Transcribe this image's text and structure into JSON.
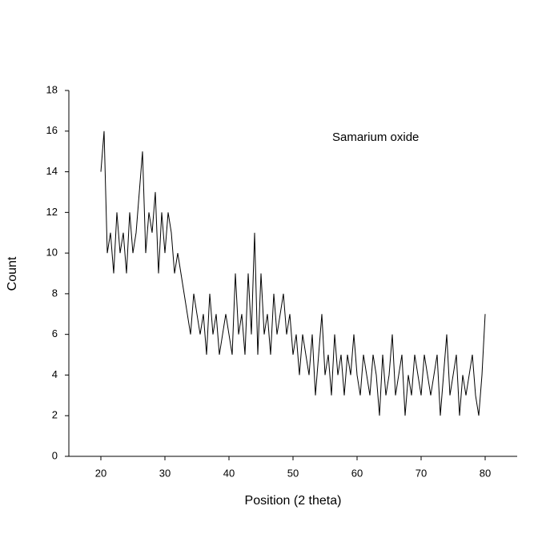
{
  "chart_data": {
    "type": "line",
    "annotation": "Samarium oxide",
    "xlabel": "Position (2 theta)",
    "ylabel": "Count",
    "x": [
      20,
      20.5,
      21,
      21.5,
      22,
      22.5,
      23,
      23.5,
      24,
      24.5,
      25,
      25.5,
      26,
      26.5,
      27,
      27.5,
      28,
      28.5,
      29,
      29.5,
      30,
      30.5,
      31,
      31.5,
      32,
      32.5,
      33,
      33.5,
      34,
      34.5,
      35,
      35.5,
      36,
      36.5,
      37,
      37.5,
      38,
      38.5,
      39,
      39.5,
      40,
      40.5,
      41,
      41.5,
      42,
      42.5,
      43,
      43.5,
      44,
      44.5,
      45,
      45.5,
      46,
      46.5,
      47,
      47.5,
      48,
      48.5,
      49,
      49.5,
      50,
      50.5,
      51,
      51.5,
      52,
      52.5,
      53,
      53.5,
      54,
      54.5,
      55,
      55.5,
      56,
      56.5,
      57,
      57.5,
      58,
      58.5,
      59,
      59.5,
      60,
      60.5,
      61,
      61.5,
      62,
      62.5,
      63,
      63.5,
      64,
      64.5,
      65,
      65.5,
      66,
      66.5,
      67,
      67.5,
      68,
      68.5,
      69,
      69.5,
      70,
      70.5,
      71,
      71.5,
      72,
      72.5,
      73,
      73.5,
      74,
      74.5,
      75,
      75.5,
      76,
      76.5,
      77,
      77.5,
      78,
      78.5,
      79,
      79.5,
      80
    ],
    "series": [
      {
        "color": "#000000",
        "values": [
          14,
          16,
          10,
          11,
          9,
          12,
          10,
          11,
          9,
          12,
          10,
          11,
          13,
          15,
          10,
          12,
          11,
          13,
          9,
          12,
          10,
          12,
          11,
          9,
          10,
          9,
          8,
          7,
          6,
          8,
          7,
          6,
          7,
          5,
          8,
          6,
          7,
          5,
          6,
          7,
          6,
          5,
          9,
          6,
          7,
          5,
          9,
          6,
          11,
          5,
          9,
          6,
          7,
          5,
          8,
          6,
          7,
          8,
          6,
          7,
          5,
          6,
          4,
          6,
          5,
          4,
          6,
          3,
          5,
          7,
          4,
          5,
          3,
          6,
          4,
          5,
          3,
          5,
          4,
          6,
          4,
          3,
          5,
          4,
          3,
          5,
          4,
          2,
          5,
          3,
          4,
          6,
          3,
          4,
          5,
          2,
          4,
          3,
          5,
          4,
          3,
          5,
          4,
          3,
          4,
          5,
          2,
          4,
          6,
          3,
          4,
          5,
          2,
          4,
          3,
          4,
          5,
          3,
          2,
          4,
          7
        ]
      }
    ],
    "xlim": [
      15,
      85
    ],
    "xticks": [
      20,
      30,
      40,
      50,
      60,
      70,
      80
    ],
    "ylim": [
      0,
      18
    ],
    "yticks": [
      0,
      2,
      4,
      6,
      8,
      10,
      12,
      14,
      16,
      18
    ]
  }
}
